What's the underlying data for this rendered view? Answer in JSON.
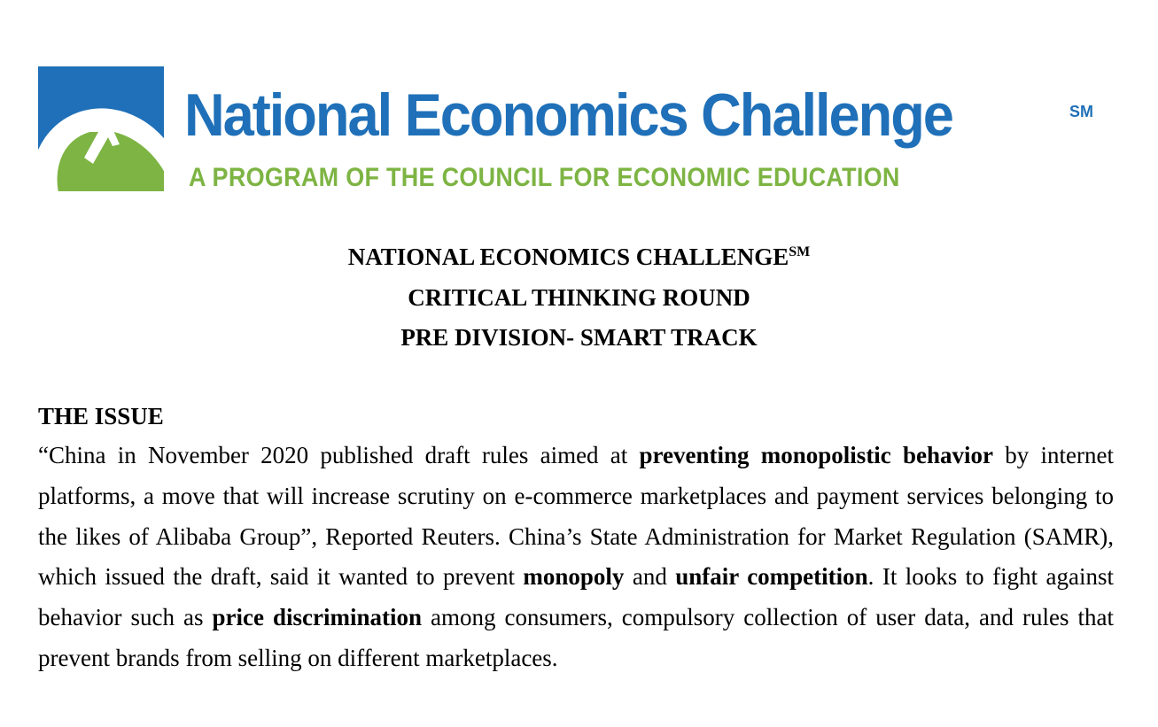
{
  "logo": {
    "title": "National Economics Challenge",
    "service_mark": "SM",
    "subtitle": "A PROGRAM OF THE COUNCIL FOR ECONOMIC EDUCATION",
    "colors": {
      "blue": "#1f70b8",
      "green": "#7db443"
    }
  },
  "header": {
    "line1": "NATIONAL ECONOMICS CHALLENGE",
    "line1_sup": "SM",
    "line2": "CRITICAL THINKING ROUND",
    "line3": "PRE DIVISION- SMART TRACK"
  },
  "issue": {
    "heading": "THE ISSUE",
    "segments": [
      {
        "text": "“China in November 2020 published draft rules aimed at ",
        "bold": false
      },
      {
        "text": "preventing monopolistic behavior",
        "bold": true
      },
      {
        "text": " by internet platforms, a move that will increase scrutiny on e-commerce marketplaces and payment services belonging to the likes of Alibaba Group”, Reported Reuters. China’s State Administration for Market Regulation (SAMR), which issued the draft, said it wanted to prevent ",
        "bold": false
      },
      {
        "text": "monopoly",
        "bold": true
      },
      {
        "text": " and ",
        "bold": false
      },
      {
        "text": "unfair competition",
        "bold": true
      },
      {
        "text": ". It looks to fight against behavior such as ",
        "bold": false
      },
      {
        "text": "price discrimination",
        "bold": true
      },
      {
        "text": " among consumers, compulsory collection of user data, and rules that prevent brands from selling on different marketplaces.",
        "bold": false
      }
    ]
  }
}
